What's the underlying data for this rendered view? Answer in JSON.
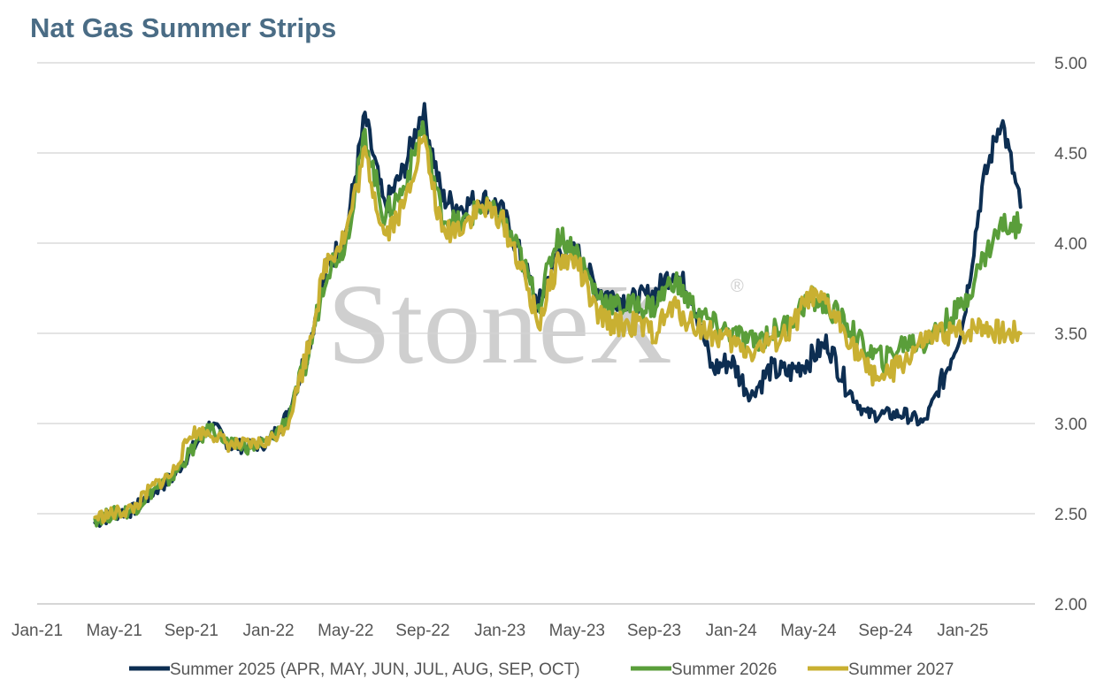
{
  "title": "Nat Gas Summer Strips",
  "watermark": {
    "text": "StoneX",
    "mark": "®"
  },
  "colors": {
    "series1": "#0d2e52",
    "series2": "#5a9e3a",
    "series3": "#c9b032",
    "grid": "#d4d4d4",
    "title": "#4a6c85"
  },
  "chart_data": {
    "type": "line",
    "title": "Nat Gas Summer Strips",
    "xlabel": "",
    "ylabel": "",
    "ylim": [
      2.0,
      5.0
    ],
    "yticks": [
      "2.00",
      "2.50",
      "3.00",
      "3.50",
      "4.00",
      "4.50",
      "5.00"
    ],
    "xticks": [
      "Jan-21",
      "May-21",
      "Sep-21",
      "Jan-22",
      "May-22",
      "Sep-22",
      "Jan-23",
      "May-23",
      "Sep-23",
      "Jan-24",
      "May-24",
      "Sep-24",
      "Jan-25"
    ],
    "xlim": [
      "2021-01",
      "2025-04"
    ],
    "grid": true,
    "y_axis_side": "right",
    "legend_position": "bottom",
    "series": [
      {
        "name": "Summer 2025 (APR, MAY, JUN, JUL, AUG, SEP, OCT)",
        "points": [
          [
            "2021-04",
            2.45
          ],
          [
            "2021-05",
            2.5
          ],
          [
            "2021-06",
            2.52
          ],
          [
            "2021-07",
            2.62
          ],
          [
            "2021-08",
            2.7
          ],
          [
            "2021-09",
            2.85
          ],
          [
            "2021-10",
            3.0
          ],
          [
            "2021-11",
            2.88
          ],
          [
            "2021-12",
            2.87
          ],
          [
            "2022-01",
            2.9
          ],
          [
            "2022-02",
            3.05
          ],
          [
            "2022-03",
            3.4
          ],
          [
            "2022-04",
            3.85
          ],
          [
            "2022-05",
            4.05
          ],
          [
            "2022-06",
            4.7
          ],
          [
            "2022-07",
            4.2
          ],
          [
            "2022-08",
            4.4
          ],
          [
            "2022-09",
            4.75
          ],
          [
            "2022-10",
            4.25
          ],
          [
            "2022-11",
            4.2
          ],
          [
            "2022-12",
            4.25
          ],
          [
            "2023-01",
            4.2
          ],
          [
            "2023-02",
            3.95
          ],
          [
            "2023-03",
            3.65
          ],
          [
            "2023-04",
            3.95
          ],
          [
            "2023-05",
            3.95
          ],
          [
            "2023-06",
            3.75
          ],
          [
            "2023-07",
            3.7
          ],
          [
            "2023-08",
            3.68
          ],
          [
            "2023-09",
            3.72
          ],
          [
            "2023-10",
            3.85
          ],
          [
            "2023-11",
            3.7
          ],
          [
            "2023-12",
            3.3
          ],
          [
            "2024-01",
            3.35
          ],
          [
            "2024-02",
            3.15
          ],
          [
            "2024-03",
            3.3
          ],
          [
            "2024-04",
            3.28
          ],
          [
            "2024-05",
            3.35
          ],
          [
            "2024-06",
            3.45
          ],
          [
            "2024-07",
            3.2
          ],
          [
            "2024-08",
            3.05
          ],
          [
            "2024-09",
            3.05
          ],
          [
            "2024-10",
            3.05
          ],
          [
            "2024-11",
            3.0
          ],
          [
            "2024-12",
            3.25
          ],
          [
            "2025-01",
            3.55
          ],
          [
            "2025-02",
            4.3
          ],
          [
            "2025-03",
            4.7
          ],
          [
            "2025-04",
            4.2
          ]
        ]
      },
      {
        "name": "Summer 2026",
        "points": [
          [
            "2021-04",
            2.47
          ],
          [
            "2021-05",
            2.5
          ],
          [
            "2021-06",
            2.52
          ],
          [
            "2021-07",
            2.63
          ],
          [
            "2021-08",
            2.7
          ],
          [
            "2021-09",
            2.85
          ],
          [
            "2021-10",
            2.98
          ],
          [
            "2021-11",
            2.88
          ],
          [
            "2021-12",
            2.87
          ],
          [
            "2022-01",
            2.9
          ],
          [
            "2022-02",
            3.03
          ],
          [
            "2022-03",
            3.35
          ],
          [
            "2022-04",
            3.85
          ],
          [
            "2022-05",
            4.0
          ],
          [
            "2022-06",
            4.6
          ],
          [
            "2022-07",
            4.15
          ],
          [
            "2022-08",
            4.3
          ],
          [
            "2022-09",
            4.65
          ],
          [
            "2022-10",
            4.15
          ],
          [
            "2022-11",
            4.1
          ],
          [
            "2022-12",
            4.2
          ],
          [
            "2023-01",
            4.15
          ],
          [
            "2023-02",
            3.95
          ],
          [
            "2023-03",
            3.65
          ],
          [
            "2023-04",
            4.05
          ],
          [
            "2023-05",
            3.95
          ],
          [
            "2023-06",
            3.72
          ],
          [
            "2023-07",
            3.65
          ],
          [
            "2023-08",
            3.65
          ],
          [
            "2023-09",
            3.65
          ],
          [
            "2023-10",
            3.8
          ],
          [
            "2023-11",
            3.65
          ],
          [
            "2023-12",
            3.55
          ],
          [
            "2024-01",
            3.5
          ],
          [
            "2024-02",
            3.45
          ],
          [
            "2024-03",
            3.5
          ],
          [
            "2024-04",
            3.55
          ],
          [
            "2024-05",
            3.7
          ],
          [
            "2024-06",
            3.65
          ],
          [
            "2024-07",
            3.55
          ],
          [
            "2024-08",
            3.4
          ],
          [
            "2024-09",
            3.35
          ],
          [
            "2024-10",
            3.45
          ],
          [
            "2024-11",
            3.45
          ],
          [
            "2024-12",
            3.55
          ],
          [
            "2025-01",
            3.65
          ],
          [
            "2025-02",
            3.9
          ],
          [
            "2025-03",
            4.1
          ],
          [
            "2025-04",
            4.1
          ]
        ]
      },
      {
        "name": "Summer 2027",
        "points": [
          [
            "2021-04",
            2.48
          ],
          [
            "2021-05",
            2.5
          ],
          [
            "2021-06",
            2.53
          ],
          [
            "2021-07",
            2.65
          ],
          [
            "2021-08",
            2.72
          ],
          [
            "2021-09",
            2.95
          ],
          [
            "2021-10",
            2.95
          ],
          [
            "2021-11",
            2.88
          ],
          [
            "2021-12",
            2.88
          ],
          [
            "2022-01",
            2.9
          ],
          [
            "2022-02",
            3.0
          ],
          [
            "2022-03",
            3.4
          ],
          [
            "2022-04",
            3.9
          ],
          [
            "2022-05",
            4.05
          ],
          [
            "2022-06",
            4.5
          ],
          [
            "2022-07",
            4.05
          ],
          [
            "2022-08",
            4.2
          ],
          [
            "2022-09",
            4.6
          ],
          [
            "2022-10",
            4.05
          ],
          [
            "2022-11",
            4.1
          ],
          [
            "2022-12",
            4.2
          ],
          [
            "2023-01",
            4.15
          ],
          [
            "2023-02",
            3.9
          ],
          [
            "2023-03",
            3.55
          ],
          [
            "2023-04",
            3.9
          ],
          [
            "2023-05",
            3.9
          ],
          [
            "2023-06",
            3.6
          ],
          [
            "2023-07",
            3.55
          ],
          [
            "2023-08",
            3.55
          ],
          [
            "2023-09",
            3.5
          ],
          [
            "2023-10",
            3.65
          ],
          [
            "2023-11",
            3.55
          ],
          [
            "2023-12",
            3.5
          ],
          [
            "2024-01",
            3.45
          ],
          [
            "2024-02",
            3.4
          ],
          [
            "2024-03",
            3.45
          ],
          [
            "2024-04",
            3.5
          ],
          [
            "2024-05",
            3.7
          ],
          [
            "2024-06",
            3.65
          ],
          [
            "2024-07",
            3.5
          ],
          [
            "2024-08",
            3.3
          ],
          [
            "2024-09",
            3.25
          ],
          [
            "2024-10",
            3.35
          ],
          [
            "2024-11",
            3.45
          ],
          [
            "2024-12",
            3.5
          ],
          [
            "2025-01",
            3.5
          ],
          [
            "2025-02",
            3.55
          ],
          [
            "2025-03",
            3.5
          ],
          [
            "2025-04",
            3.5
          ]
        ]
      }
    ]
  }
}
